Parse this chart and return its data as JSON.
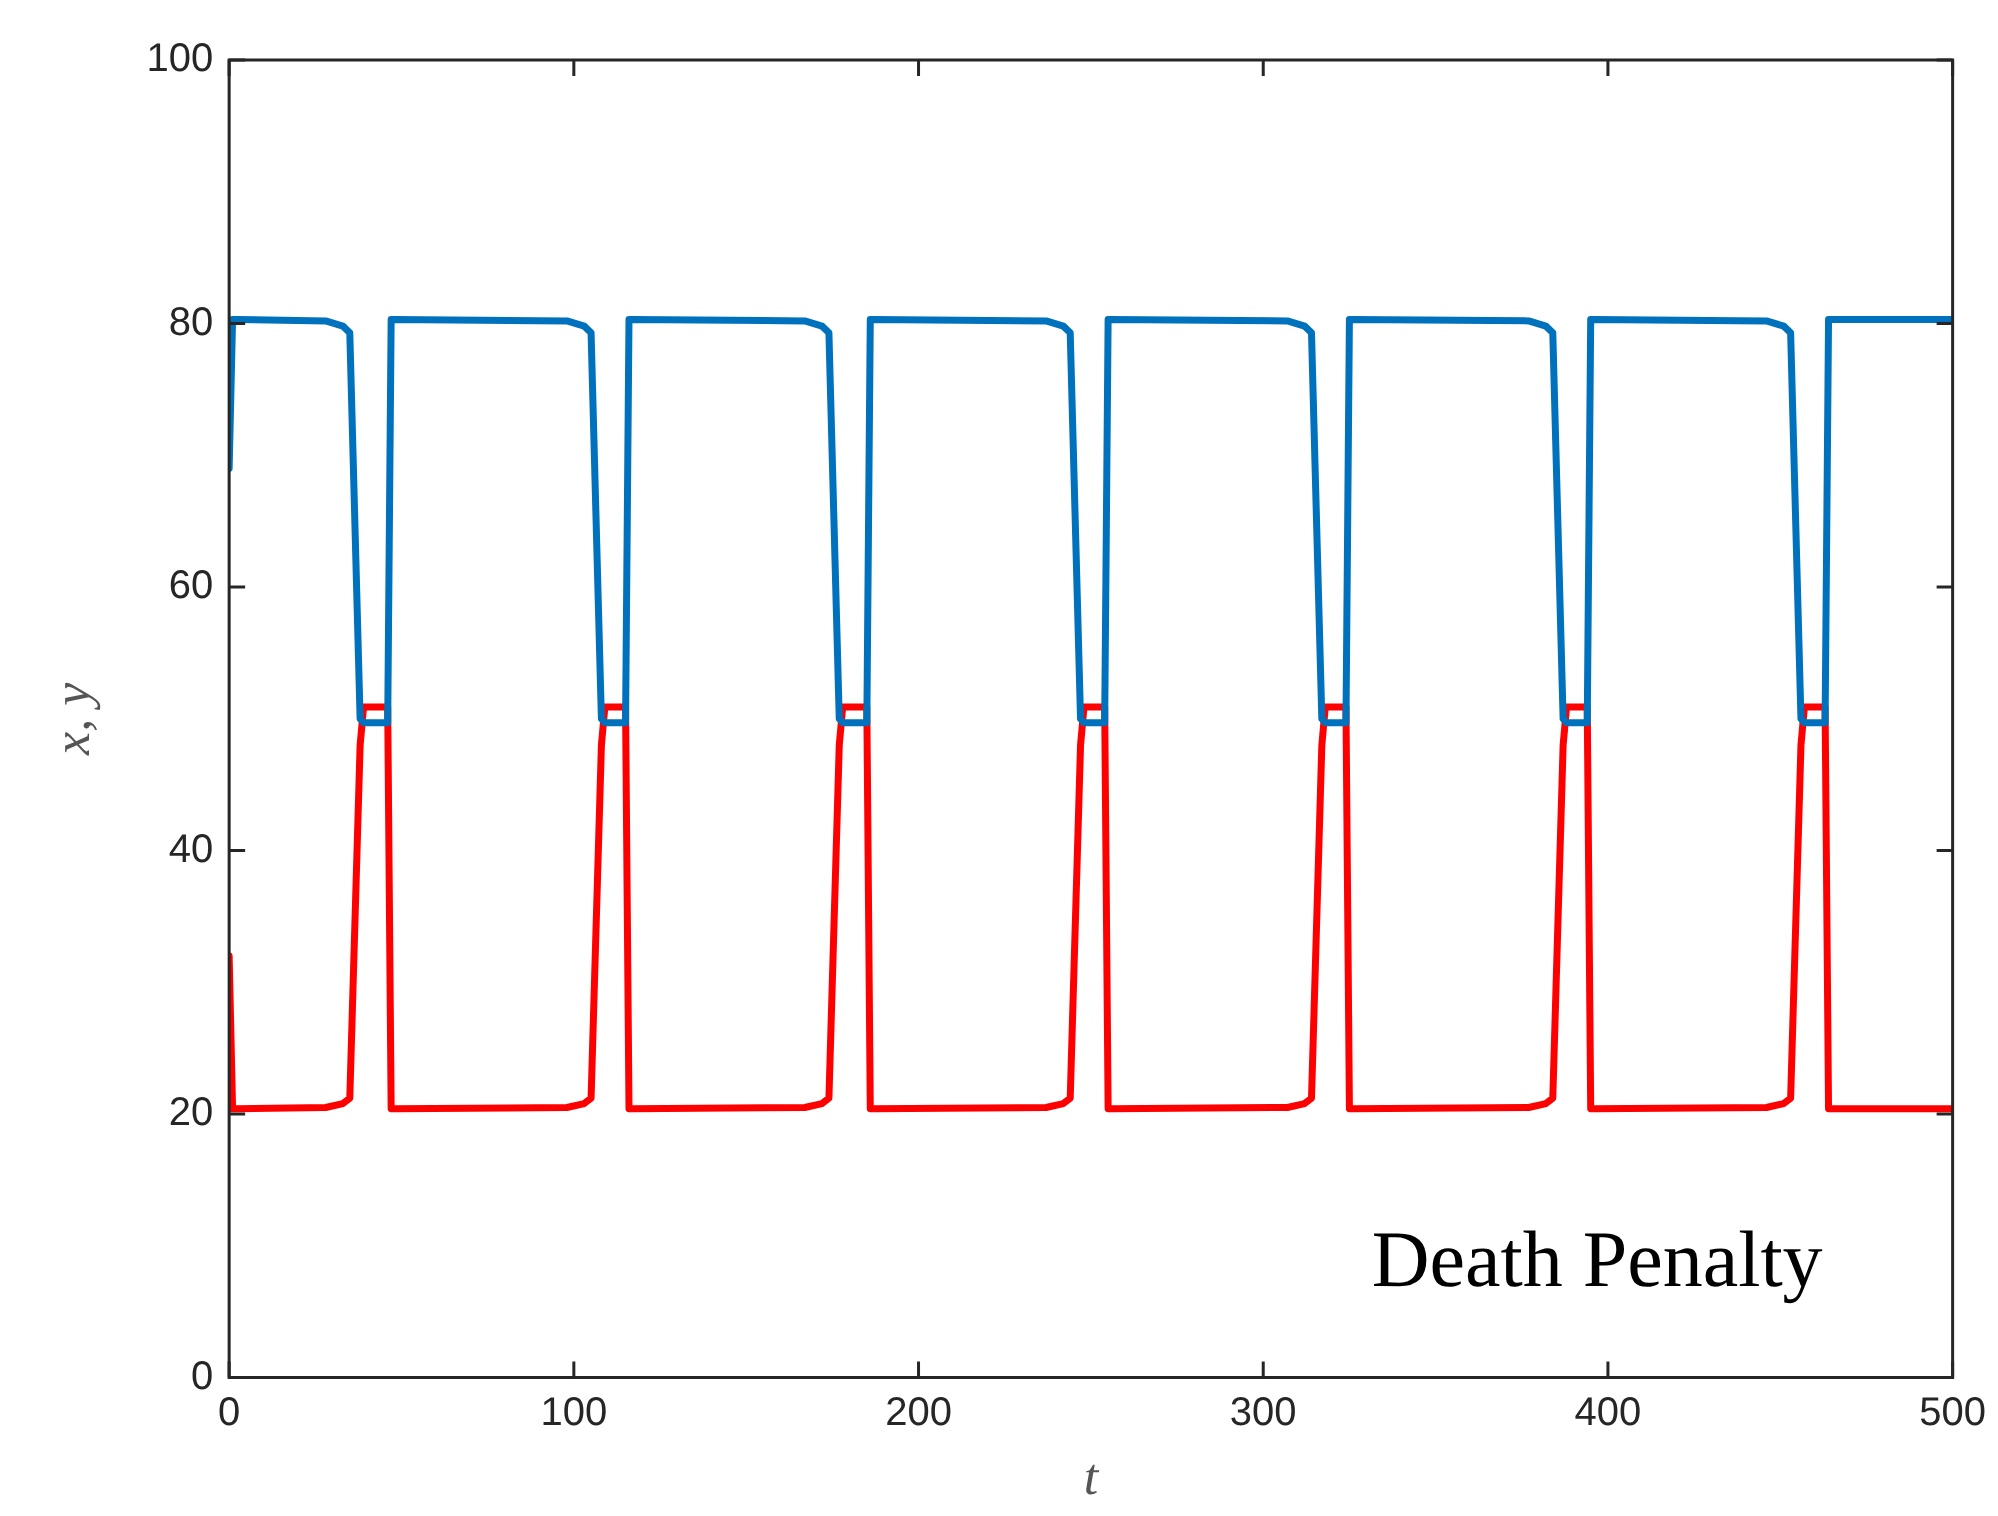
{
  "chart_data": {
    "type": "line",
    "xlabel": "t",
    "ylabel": "x, y",
    "annotations": [
      "Death Penalty"
    ],
    "x": [
      0,
      1,
      2,
      28,
      33,
      35,
      38,
      39,
      46,
      47,
      48,
      98,
      103,
      105,
      108,
      109,
      115,
      116,
      117,
      167,
      172,
      174,
      177,
      178,
      185,
      186,
      187,
      237,
      242,
      244,
      247,
      248,
      254,
      255,
      256,
      307,
      312,
      314,
      317,
      318,
      324,
      325,
      326,
      377,
      382,
      384,
      387,
      388,
      394,
      395,
      396,
      446,
      451,
      453,
      456,
      457,
      463,
      464,
      465,
      500
    ],
    "series": [
      {
        "color": "#0072bd",
        "values": [
          69,
          80.3,
          80.3,
          80.2,
          79.8,
          79.3,
          50,
          49.7,
          49.7,
          80.3,
          80.3,
          80.2,
          79.8,
          79.3,
          50,
          49.7,
          49.7,
          80.3,
          80.3,
          80.2,
          79.8,
          79.3,
          50,
          49.7,
          49.7,
          80.3,
          80.3,
          80.2,
          79.8,
          79.3,
          50,
          49.7,
          49.7,
          80.3,
          80.3,
          80.2,
          79.8,
          79.3,
          50,
          49.7,
          49.7,
          80.3,
          80.3,
          80.2,
          79.8,
          79.3,
          50,
          49.7,
          49.7,
          80.3,
          80.3,
          80.2,
          79.8,
          79.3,
          50,
          49.7,
          49.7,
          80.3,
          80.3,
          80.3
        ]
      },
      {
        "color": "#ff0000",
        "values": [
          32,
          20.4,
          20.4,
          20.5,
          20.8,
          21.2,
          48,
          50.9,
          50.9,
          20.4,
          20.4,
          20.5,
          20.8,
          21.2,
          48,
          50.9,
          50.9,
          20.4,
          20.4,
          20.5,
          20.8,
          21.2,
          48,
          50.9,
          50.9,
          20.4,
          20.4,
          20.5,
          20.8,
          21.2,
          48,
          50.9,
          50.9,
          20.4,
          20.4,
          20.5,
          20.8,
          21.2,
          48,
          50.9,
          50.9,
          20.4,
          20.4,
          20.5,
          20.8,
          21.2,
          48,
          50.9,
          50.9,
          20.4,
          20.4,
          20.5,
          20.8,
          21.2,
          48,
          50.9,
          50.9,
          20.4,
          20.4,
          20.4
        ]
      }
    ],
    "xlim": [
      0,
      500
    ],
    "xticks": [
      0,
      100,
      200,
      300,
      400,
      500
    ],
    "ylim": [
      0,
      100
    ],
    "yticks": [
      0,
      20,
      40,
      60,
      80,
      100
    ],
    "grid": false,
    "legend": false,
    "marker": "none",
    "line_style": "solid"
  }
}
